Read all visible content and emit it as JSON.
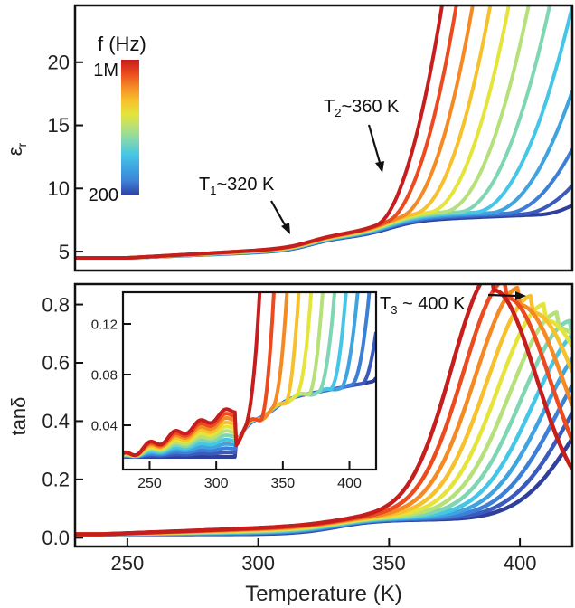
{
  "chart_data": [
    {
      "type": "line",
      "panel": "top",
      "ylabel": "εr",
      "xlim": [
        230,
        420
      ],
      "ylim": [
        3.5,
        24.5
      ],
      "yticks": [
        5,
        10,
        15,
        20
      ],
      "colorbar": {
        "title": "f (Hz)",
        "top_label": "1M",
        "bottom_label": "200",
        "colors": [
          "#2f3f9c",
          "#3a5bbd",
          "#3d7fd6",
          "#3fa3e0",
          "#46c6e6",
          "#7fd6b3",
          "#b6e07a",
          "#e4e43a",
          "#f6c12d",
          "#f58a24",
          "#ec4a1f",
          "#c61d1d"
        ]
      },
      "annotations": [
        {
          "text": "T",
          "sub": "1",
          "rest": "~320 K",
          "x": 320,
          "y": 6.0
        },
        {
          "text": "T",
          "sub": "2",
          "rest": "~360 K",
          "x": 350,
          "y": 10.0
        }
      ],
      "series_count": 12,
      "series_description": "frequency-dependent dielectric constant curves from 200 Hz (blue) to 1 MHz (red)"
    },
    {
      "type": "line",
      "panel": "bottom",
      "ylabel": "tanδ",
      "xlabel": "Temperature (K)",
      "xlim": [
        230,
        420
      ],
      "ylim": [
        -0.03,
        0.87
      ],
      "xticks": [
        250,
        300,
        350,
        400
      ],
      "yticks": [
        "0.0",
        "0.2",
        "0.4",
        "0.6",
        "0.8"
      ],
      "annotations": [
        {
          "text": "T",
          "sub": "3",
          "rest": " ~ 400 K",
          "x": 405,
          "y": 0.84
        }
      ],
      "inset": {
        "xlim": [
          230,
          420
        ],
        "ylim": [
          0.005,
          0.145
        ],
        "xticks": [
          250,
          300,
          350,
          400
        ],
        "yticks": [
          "0.04",
          "0.08",
          "0.12"
        ]
      }
    }
  ],
  "colors": {
    "blue": "#2f3f9c",
    "red": "#c61d1d"
  }
}
